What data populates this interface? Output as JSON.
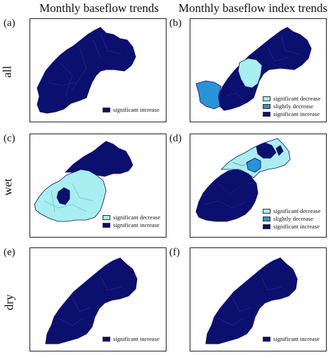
{
  "columns": [
    {
      "title": "Monthly baseflow trends"
    },
    {
      "title": "Monthly baseflow index trends"
    }
  ],
  "rows": [
    {
      "label": "all"
    },
    {
      "label": "wet"
    },
    {
      "label": "dry"
    }
  ],
  "colors": {
    "significant_increase": "#0b0f6e",
    "significant_decrease": "#a9eef0",
    "slightly_decrease": "#2a93d5",
    "border": "#222222",
    "detail_line": "#2a3299"
  },
  "panels": [
    {
      "letter": "(a)",
      "legend": [
        {
          "label": "significant increase",
          "color": "#0b0f6e"
        }
      ]
    },
    {
      "letter": "(b)",
      "legend": [
        {
          "label": "significant decrease",
          "color": "#a9eef0"
        },
        {
          "label": "slightly decrease",
          "color": "#2a93d5"
        },
        {
          "label": "significant increase",
          "color": "#0b0f6e"
        }
      ]
    },
    {
      "letter": "(c)",
      "legend": [
        {
          "label": "significant decrease",
          "color": "#a9eef0"
        },
        {
          "label": "significant increase",
          "color": "#0b0f6e"
        }
      ]
    },
    {
      "letter": "(d)",
      "legend": [
        {
          "label": "significant decrease",
          "color": "#a9eef0"
        },
        {
          "label": "slightly decrease",
          "color": "#2a93d5"
        },
        {
          "label": "significant increase",
          "color": "#0b0f6e"
        }
      ]
    },
    {
      "letter": "(e)",
      "legend": [
        {
          "label": "significant increase",
          "color": "#0b0f6e"
        }
      ]
    },
    {
      "letter": "(f)",
      "legend": [
        {
          "label": "significant increase",
          "color": "#0b0f6e"
        }
      ]
    }
  ]
}
